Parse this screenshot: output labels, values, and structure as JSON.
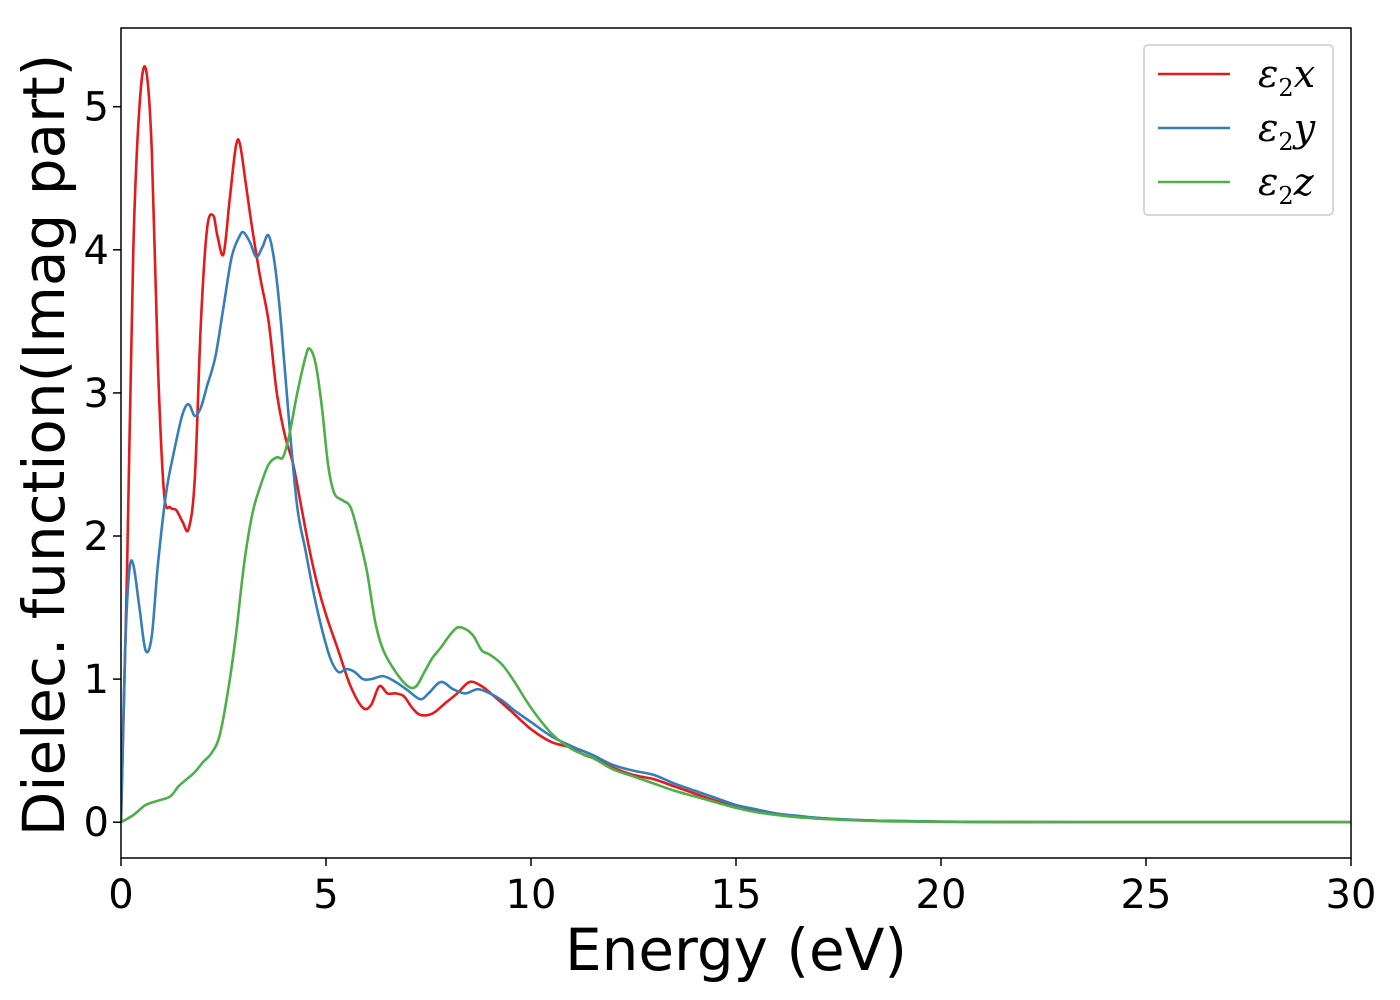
{
  "chart_data": {
    "type": "line",
    "title": "",
    "xlabel": "Energy (eV)",
    "ylabel": "Dielec. function(Imag part)",
    "xlim": [
      0,
      30
    ],
    "ylim": [
      -0.25,
      5.55
    ],
    "xticks": [
      0,
      5,
      10,
      15,
      20,
      25,
      30
    ],
    "yticks": [
      0,
      1,
      2,
      3,
      4,
      5
    ],
    "grid": false,
    "legend_position": "top-right",
    "series": [
      {
        "name": "ε2x",
        "symbol": "ε",
        "sub": "2",
        "axis": "x",
        "color": "#e41a1c",
        "x": [
          0,
          0.15,
          0.3,
          0.45,
          0.6,
          0.75,
          0.9,
          1.05,
          1.2,
          1.35,
          1.5,
          1.65,
          1.8,
          1.95,
          2.1,
          2.25,
          2.35,
          2.5,
          2.65,
          2.8,
          2.9,
          3.05,
          3.2,
          3.4,
          3.6,
          3.8,
          4.0,
          4.2,
          4.4,
          4.6,
          4.8,
          5.0,
          5.3,
          5.6,
          5.9,
          6.1,
          6.3,
          6.5,
          6.7,
          6.9,
          7.1,
          7.3,
          7.6,
          7.9,
          8.2,
          8.5,
          8.8,
          9.1,
          9.5,
          10.0,
          10.5,
          11.0,
          11.3,
          11.6,
          12.0,
          12.5,
          13.0,
          13.5,
          14.0,
          14.5,
          15.0,
          15.5,
          16.0,
          16.5,
          17.0,
          17.5,
          18.0,
          18.5,
          19.0,
          20.0,
          21.0,
          22.0,
          24.0,
          26.0,
          28.0,
          30.0
        ],
        "y": [
          0,
          1.8,
          4.0,
          5.0,
          5.27,
          4.7,
          3.2,
          2.3,
          2.2,
          2.18,
          2.1,
          2.05,
          2.4,
          3.5,
          4.15,
          4.24,
          4.1,
          3.97,
          4.35,
          4.72,
          4.74,
          4.45,
          4.15,
          3.8,
          3.5,
          3.0,
          2.7,
          2.5,
          2.2,
          1.9,
          1.65,
          1.45,
          1.2,
          0.95,
          0.8,
          0.82,
          0.95,
          0.9,
          0.9,
          0.88,
          0.8,
          0.75,
          0.76,
          0.83,
          0.9,
          0.98,
          0.95,
          0.88,
          0.78,
          0.65,
          0.56,
          0.52,
          0.47,
          0.44,
          0.38,
          0.33,
          0.3,
          0.25,
          0.2,
          0.15,
          0.11,
          0.08,
          0.06,
          0.04,
          0.03,
          0.02,
          0.015,
          0.01,
          0.008,
          0.004,
          0.002,
          0.001,
          0,
          0,
          0,
          0
        ]
      },
      {
        "name": "ε2y",
        "symbol": "ε",
        "sub": "2",
        "axis": "y",
        "color": "#377eb8",
        "x": [
          0,
          0.1,
          0.2,
          0.3,
          0.45,
          0.6,
          0.75,
          0.9,
          1.1,
          1.3,
          1.5,
          1.65,
          1.8,
          1.95,
          2.1,
          2.3,
          2.5,
          2.7,
          2.9,
          3.0,
          3.15,
          3.3,
          3.45,
          3.6,
          3.75,
          3.9,
          4.1,
          4.3,
          4.5,
          4.7,
          4.9,
          5.1,
          5.3,
          5.5,
          5.7,
          5.9,
          6.1,
          6.4,
          6.7,
          7.0,
          7.3,
          7.5,
          7.8,
          8.1,
          8.4,
          8.7,
          9.0,
          9.3,
          9.6,
          10.0,
          10.5,
          11.0,
          11.5,
          12.0,
          12.5,
          13.0,
          13.5,
          14.0,
          14.5,
          15.0,
          15.5,
          16.0,
          16.5,
          17.0,
          17.5,
          18.0,
          18.5,
          19.0,
          20.0,
          21.0,
          22.0,
          24.0,
          26.0,
          28.0,
          30.0
        ],
        "y": [
          0,
          1.2,
          1.75,
          1.8,
          1.5,
          1.2,
          1.3,
          1.8,
          2.3,
          2.6,
          2.85,
          2.92,
          2.84,
          2.9,
          3.05,
          3.25,
          3.6,
          3.95,
          4.1,
          4.12,
          4.05,
          3.95,
          4.02,
          4.1,
          3.9,
          3.5,
          2.8,
          2.2,
          1.9,
          1.6,
          1.35,
          1.15,
          1.05,
          1.07,
          1.05,
          1.0,
          1.0,
          1.02,
          0.98,
          0.92,
          0.86,
          0.9,
          0.98,
          0.93,
          0.9,
          0.93,
          0.9,
          0.85,
          0.78,
          0.7,
          0.6,
          0.53,
          0.47,
          0.4,
          0.36,
          0.33,
          0.27,
          0.22,
          0.17,
          0.12,
          0.09,
          0.06,
          0.045,
          0.03,
          0.022,
          0.015,
          0.01,
          0.008,
          0.004,
          0.002,
          0.001,
          0,
          0,
          0,
          0
        ]
      },
      {
        "name": "ε2z",
        "symbol": "ε",
        "sub": "2",
        "axis": "z",
        "color": "#4daf4a",
        "x": [
          0,
          0.3,
          0.6,
          0.9,
          1.2,
          1.4,
          1.6,
          1.8,
          2.0,
          2.2,
          2.4,
          2.6,
          2.8,
          3.0,
          3.2,
          3.4,
          3.6,
          3.8,
          3.95,
          4.1,
          4.3,
          4.5,
          4.6,
          4.75,
          4.9,
          5.05,
          5.2,
          5.4,
          5.6,
          5.8,
          6.0,
          6.2,
          6.4,
          6.7,
          7.0,
          7.2,
          7.4,
          7.6,
          7.8,
          8.0,
          8.2,
          8.4,
          8.6,
          8.8,
          9.0,
          9.3,
          9.6,
          10.0,
          10.5,
          11.0,
          11.5,
          12.0,
          12.5,
          13.0,
          13.5,
          14.0,
          14.5,
          15.0,
          15.5,
          16.0,
          16.5,
          17.0,
          17.5,
          18.0,
          18.5,
          19.0,
          20.0,
          21.0,
          22.0,
          24.0,
          26.0,
          28.0,
          30.0
        ],
        "y": [
          0,
          0.05,
          0.12,
          0.15,
          0.18,
          0.25,
          0.3,
          0.35,
          0.42,
          0.48,
          0.6,
          0.9,
          1.3,
          1.8,
          2.15,
          2.35,
          2.5,
          2.55,
          2.55,
          2.7,
          3.0,
          3.25,
          3.31,
          3.2,
          2.9,
          2.5,
          2.3,
          2.25,
          2.2,
          2.0,
          1.75,
          1.4,
          1.2,
          1.05,
          0.95,
          0.95,
          1.05,
          1.15,
          1.22,
          1.3,
          1.36,
          1.35,
          1.3,
          1.2,
          1.17,
          1.1,
          0.98,
          0.8,
          0.62,
          0.51,
          0.45,
          0.37,
          0.32,
          0.27,
          0.22,
          0.18,
          0.14,
          0.1,
          0.07,
          0.05,
          0.035,
          0.025,
          0.018,
          0.012,
          0.008,
          0.005,
          0.003,
          0.002,
          0.001,
          0,
          0,
          0,
          0
        ]
      }
    ]
  }
}
